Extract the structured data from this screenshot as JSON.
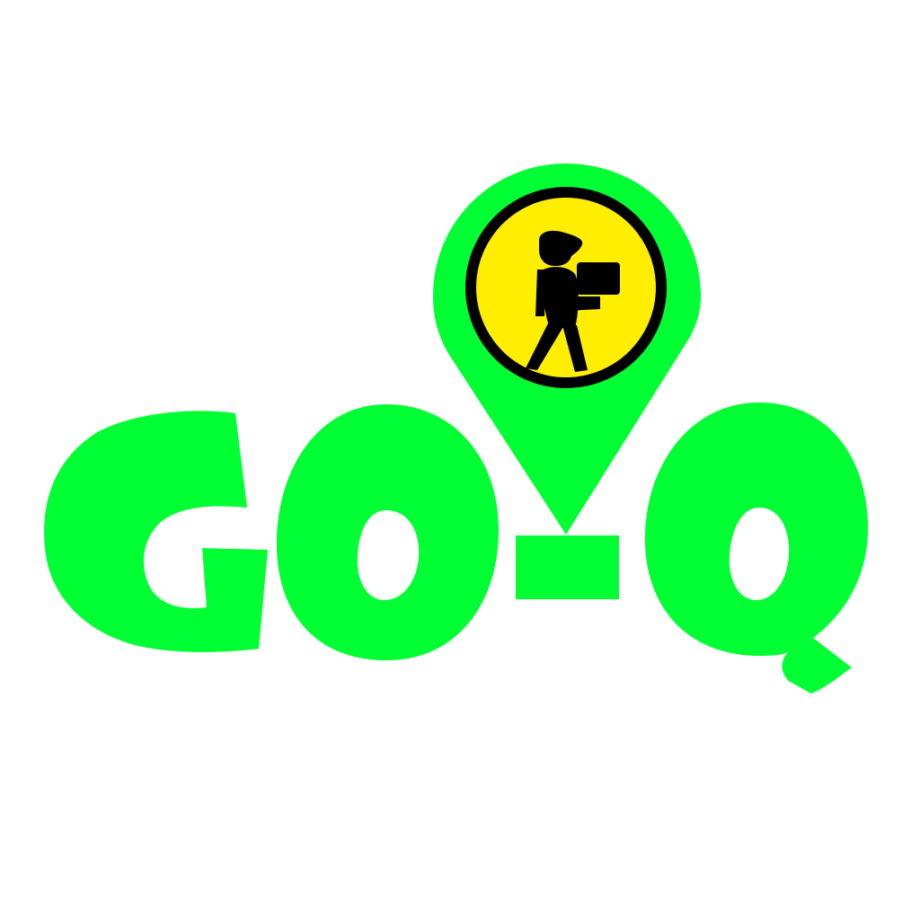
{
  "logo": {
    "wordmark": "GO-Q",
    "letters": [
      "G",
      "O",
      "-",
      "Q"
    ],
    "icon": "location-pin-icon",
    "inner_icon": "delivery-person-carrying-box-icon",
    "colors": {
      "background": "#ffffff",
      "brand_green": "#00ff33",
      "pin_inner_yellow": "#ffee00",
      "outline_black": "#000000"
    }
  }
}
